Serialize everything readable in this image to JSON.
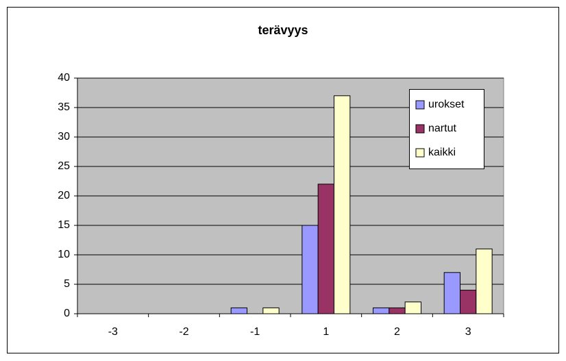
{
  "chart_data": {
    "type": "bar",
    "title": "terävyys",
    "categories": [
      "-3",
      "-2",
      "-1",
      "1",
      "2",
      "3"
    ],
    "series": [
      {
        "name": "urokset",
        "color": "#9999ff",
        "values": [
          0,
          0,
          1,
          15,
          1,
          7
        ]
      },
      {
        "name": "nartut",
        "color": "#993366",
        "values": [
          0,
          0,
          0,
          22,
          1,
          4
        ]
      },
      {
        "name": "kaikki",
        "color": "#ffffcc",
        "values": [
          0,
          0,
          1,
          37,
          2,
          11
        ]
      }
    ],
    "ylim": [
      0,
      40
    ],
    "yticks": [
      0,
      5,
      10,
      15,
      20,
      25,
      30,
      35,
      40
    ],
    "grid": true,
    "legend": "right"
  }
}
